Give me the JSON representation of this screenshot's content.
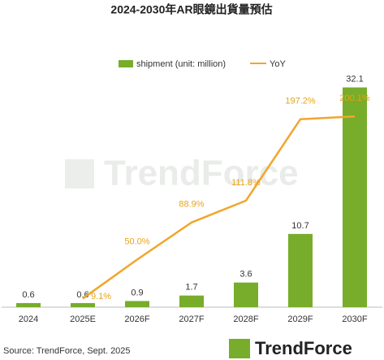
{
  "chart_data": {
    "type": "bar_line",
    "title": "2024-2030年AR眼鏡出貨量預估",
    "categories": [
      "2024",
      "2025E",
      "2026F",
      "2027F",
      "2028F",
      "2029F",
      "2030F"
    ],
    "series": [
      {
        "name": "shipment (unit: million)",
        "type": "bar",
        "color": "#77ad2a",
        "values": [
          0.6,
          0.6,
          0.9,
          1.7,
          3.6,
          10.7,
          32.1
        ]
      },
      {
        "name": "YoY",
        "type": "line",
        "axis": "y2",
        "color": "#f2a52c",
        "values": [
          null,
          9.1,
          50.0,
          88.9,
          111.8,
          197.2,
          200.1
        ],
        "value_labels": [
          null,
          "9.1%",
          "50.0%",
          "88.9%",
          "111.8%",
          "197.2%",
          "200.1%"
        ]
      }
    ],
    "ylim": [
      0,
      33
    ],
    "y2lim": [
      0,
      237
    ],
    "source": "Source: TrendForce, Sept. 2025",
    "watermark": "TrendForce",
    "logo": "TrendForce"
  }
}
